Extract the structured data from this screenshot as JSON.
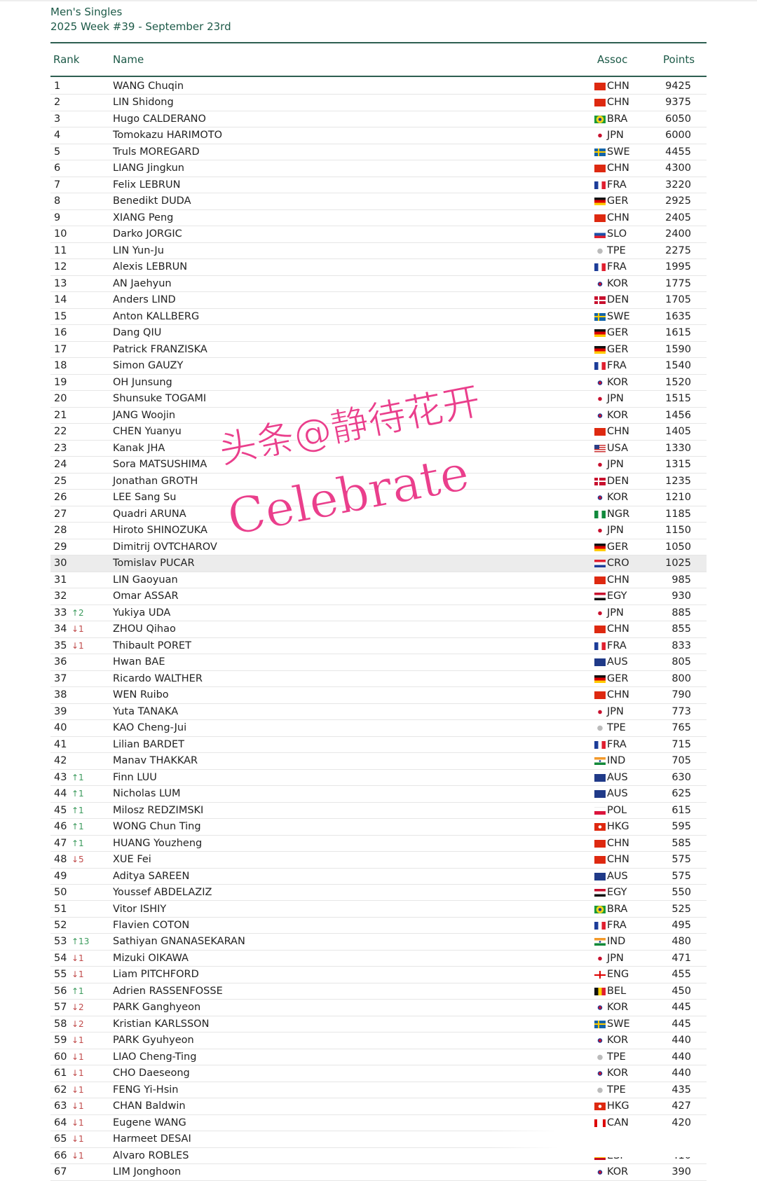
{
  "header": {
    "title": "Men's Singles",
    "subtitle": "2025 Week #39 - September 23rd"
  },
  "columns": {
    "rank": "Rank",
    "name": "Name",
    "assoc": "Assoc",
    "points": "Points"
  },
  "colors": {
    "accent": "#1d5a48",
    "up": "#3b9a5c",
    "down": "#c04a4a",
    "highlight_row": "#ececec"
  },
  "highlighted_rank": "30",
  "watermark": {
    "line1": "头条@静待花开",
    "line2": "Celebrate"
  },
  "rows": [
    {
      "rank": "1",
      "name": "WANG Chuqin",
      "assoc": "CHN",
      "points": "9425"
    },
    {
      "rank": "2",
      "name": "LIN Shidong",
      "assoc": "CHN",
      "points": "9375"
    },
    {
      "rank": "3",
      "name": "Hugo CALDERANO",
      "assoc": "BRA",
      "points": "6050"
    },
    {
      "rank": "4",
      "name": "Tomokazu HARIMOTO",
      "assoc": "JPN",
      "points": "6000"
    },
    {
      "rank": "5",
      "name": "Truls MOREGARD",
      "assoc": "SWE",
      "points": "4455"
    },
    {
      "rank": "6",
      "name": "LIANG Jingkun",
      "assoc": "CHN",
      "points": "4300"
    },
    {
      "rank": "7",
      "name": "Felix LEBRUN",
      "assoc": "FRA",
      "points": "3220"
    },
    {
      "rank": "8",
      "name": "Benedikt DUDA",
      "assoc": "GER",
      "points": "2925"
    },
    {
      "rank": "9",
      "name": "XIANG Peng",
      "assoc": "CHN",
      "points": "2405"
    },
    {
      "rank": "10",
      "name": "Darko JORGIC",
      "assoc": "SLO",
      "points": "2400"
    },
    {
      "rank": "11",
      "name": "LIN Yun-Ju",
      "assoc": "TPE",
      "points": "2275"
    },
    {
      "rank": "12",
      "name": "Alexis LEBRUN",
      "assoc": "FRA",
      "points": "1995"
    },
    {
      "rank": "13",
      "name": "AN Jaehyun",
      "assoc": "KOR",
      "points": "1775"
    },
    {
      "rank": "14",
      "name": "Anders LIND",
      "assoc": "DEN",
      "points": "1705"
    },
    {
      "rank": "15",
      "name": "Anton KALLBERG",
      "assoc": "SWE",
      "points": "1635"
    },
    {
      "rank": "16",
      "name": "Dang QIU",
      "assoc": "GER",
      "points": "1615"
    },
    {
      "rank": "17",
      "name": "Patrick FRANZISKA",
      "assoc": "GER",
      "points": "1590"
    },
    {
      "rank": "18",
      "name": "Simon GAUZY",
      "assoc": "FRA",
      "points": "1540"
    },
    {
      "rank": "19",
      "name": "OH Junsung",
      "assoc": "KOR",
      "points": "1520"
    },
    {
      "rank": "20",
      "name": "Shunsuke TOGAMI",
      "assoc": "JPN",
      "points": "1515"
    },
    {
      "rank": "21",
      "name": "JANG Woojin",
      "assoc": "KOR",
      "points": "1456"
    },
    {
      "rank": "22",
      "name": "CHEN Yuanyu",
      "assoc": "CHN",
      "points": "1405"
    },
    {
      "rank": "23",
      "name": "Kanak JHA",
      "assoc": "USA",
      "points": "1330"
    },
    {
      "rank": "24",
      "name": "Sora MATSUSHIMA",
      "assoc": "JPN",
      "points": "1315"
    },
    {
      "rank": "25",
      "name": "Jonathan GROTH",
      "assoc": "DEN",
      "points": "1235"
    },
    {
      "rank": "26",
      "name": "LEE Sang Su",
      "assoc": "KOR",
      "points": "1210"
    },
    {
      "rank": "27",
      "name": "Quadri ARUNA",
      "assoc": "NGR",
      "points": "1185"
    },
    {
      "rank": "28",
      "name": "Hiroto SHINOZUKA",
      "assoc": "JPN",
      "points": "1150"
    },
    {
      "rank": "29",
      "name": "Dimitrij OVTCHAROV",
      "assoc": "GER",
      "points": "1050"
    },
    {
      "rank": "30",
      "name": "Tomislav PUCAR",
      "assoc": "CRO",
      "points": "1025"
    },
    {
      "rank": "31",
      "name": "LIN Gaoyuan",
      "assoc": "CHN",
      "points": "985"
    },
    {
      "rank": "32",
      "name": "Omar ASSAR",
      "assoc": "EGY",
      "points": "930"
    },
    {
      "rank": "33",
      "change": "↑2",
      "dir": "up",
      "name": "Yukiya UDA",
      "assoc": "JPN",
      "points": "885"
    },
    {
      "rank": "34",
      "change": "↓1",
      "dir": "down",
      "name": "ZHOU Qihao",
      "assoc": "CHN",
      "points": "855"
    },
    {
      "rank": "35",
      "change": "↓1",
      "dir": "down",
      "name": "Thibault PORET",
      "assoc": "FRA",
      "points": "833"
    },
    {
      "rank": "36",
      "name": "Hwan BAE",
      "assoc": "AUS",
      "points": "805"
    },
    {
      "rank": "37",
      "name": "Ricardo WALTHER",
      "assoc": "GER",
      "points": "800"
    },
    {
      "rank": "38",
      "name": "WEN Ruibo",
      "assoc": "CHN",
      "points": "790"
    },
    {
      "rank": "39",
      "name": "Yuta TANAKA",
      "assoc": "JPN",
      "points": "773"
    },
    {
      "rank": "40",
      "name": "KAO Cheng-Jui",
      "assoc": "TPE",
      "points": "765"
    },
    {
      "rank": "41",
      "name": "Lilian BARDET",
      "assoc": "FRA",
      "points": "715"
    },
    {
      "rank": "42",
      "name": "Manav THAKKAR",
      "assoc": "IND",
      "points": "705"
    },
    {
      "rank": "43",
      "change": "↑1",
      "dir": "up",
      "name": "Finn LUU",
      "assoc": "AUS",
      "points": "630"
    },
    {
      "rank": "44",
      "change": "↑1",
      "dir": "up",
      "name": "Nicholas LUM",
      "assoc": "AUS",
      "points": "625"
    },
    {
      "rank": "45",
      "change": "↑1",
      "dir": "up",
      "name": "Milosz REDZIMSKI",
      "assoc": "POL",
      "points": "615"
    },
    {
      "rank": "46",
      "change": "↑1",
      "dir": "up",
      "name": "WONG Chun Ting",
      "assoc": "HKG",
      "points": "595"
    },
    {
      "rank": "47",
      "change": "↑1",
      "dir": "up",
      "name": "HUANG Youzheng",
      "assoc": "CHN",
      "points": "585"
    },
    {
      "rank": "48",
      "change": "↓5",
      "dir": "down",
      "name": "XUE Fei",
      "assoc": "CHN",
      "points": "575"
    },
    {
      "rank": "49",
      "name": "Aditya SAREEN",
      "assoc": "AUS",
      "points": "575"
    },
    {
      "rank": "50",
      "name": "Youssef ABDELAZIZ",
      "assoc": "EGY",
      "points": "550"
    },
    {
      "rank": "51",
      "name": "Vitor ISHIY",
      "assoc": "BRA",
      "points": "525"
    },
    {
      "rank": "52",
      "name": "Flavien COTON",
      "assoc": "FRA",
      "points": "495"
    },
    {
      "rank": "53",
      "change": "↑13",
      "dir": "up",
      "name": "Sathiyan GNANASEKARAN",
      "assoc": "IND",
      "points": "480"
    },
    {
      "rank": "54",
      "change": "↓1",
      "dir": "down",
      "name": "Mizuki OIKAWA",
      "assoc": "JPN",
      "points": "471"
    },
    {
      "rank": "55",
      "change": "↓1",
      "dir": "down",
      "name": "Liam PITCHFORD",
      "assoc": "ENG",
      "points": "455"
    },
    {
      "rank": "56",
      "change": "↑1",
      "dir": "up",
      "name": "Adrien RASSENFOSSE",
      "assoc": "BEL",
      "points": "450"
    },
    {
      "rank": "57",
      "change": "↓2",
      "dir": "down",
      "name": "PARK Ganghyeon",
      "assoc": "KOR",
      "points": "445"
    },
    {
      "rank": "58",
      "change": "↓2",
      "dir": "down",
      "name": "Kristian KARLSSON",
      "assoc": "SWE",
      "points": "445"
    },
    {
      "rank": "59",
      "change": "↓1",
      "dir": "down",
      "name": "PARK Gyuhyeon",
      "assoc": "KOR",
      "points": "440"
    },
    {
      "rank": "60",
      "change": "↓1",
      "dir": "down",
      "name": "LIAO Cheng-Ting",
      "assoc": "TPE",
      "points": "440"
    },
    {
      "rank": "61",
      "change": "↓1",
      "dir": "down",
      "name": "CHO Daeseong",
      "assoc": "KOR",
      "points": "440"
    },
    {
      "rank": "62",
      "change": "↓1",
      "dir": "down",
      "name": "FENG Yi-Hsin",
      "assoc": "TPE",
      "points": "435"
    },
    {
      "rank": "63",
      "change": "↓1",
      "dir": "down",
      "name": "CHAN Baldwin",
      "assoc": "HKG",
      "points": "427"
    },
    {
      "rank": "64",
      "change": "↓1",
      "dir": "down",
      "name": "Eugene WANG",
      "assoc": "CAN",
      "points": "420"
    },
    {
      "rank": "65",
      "change": "↓1",
      "dir": "down",
      "name": "Harmeet DESAI",
      "obscured": true
    },
    {
      "rank": "66",
      "change": "↓1",
      "dir": "down",
      "name": "Alvaro ROBLES",
      "assoc": "ESP",
      "points": "410"
    },
    {
      "rank": "67",
      "name": "LIM Jonghoon",
      "assoc": "KOR",
      "points": "390"
    }
  ]
}
